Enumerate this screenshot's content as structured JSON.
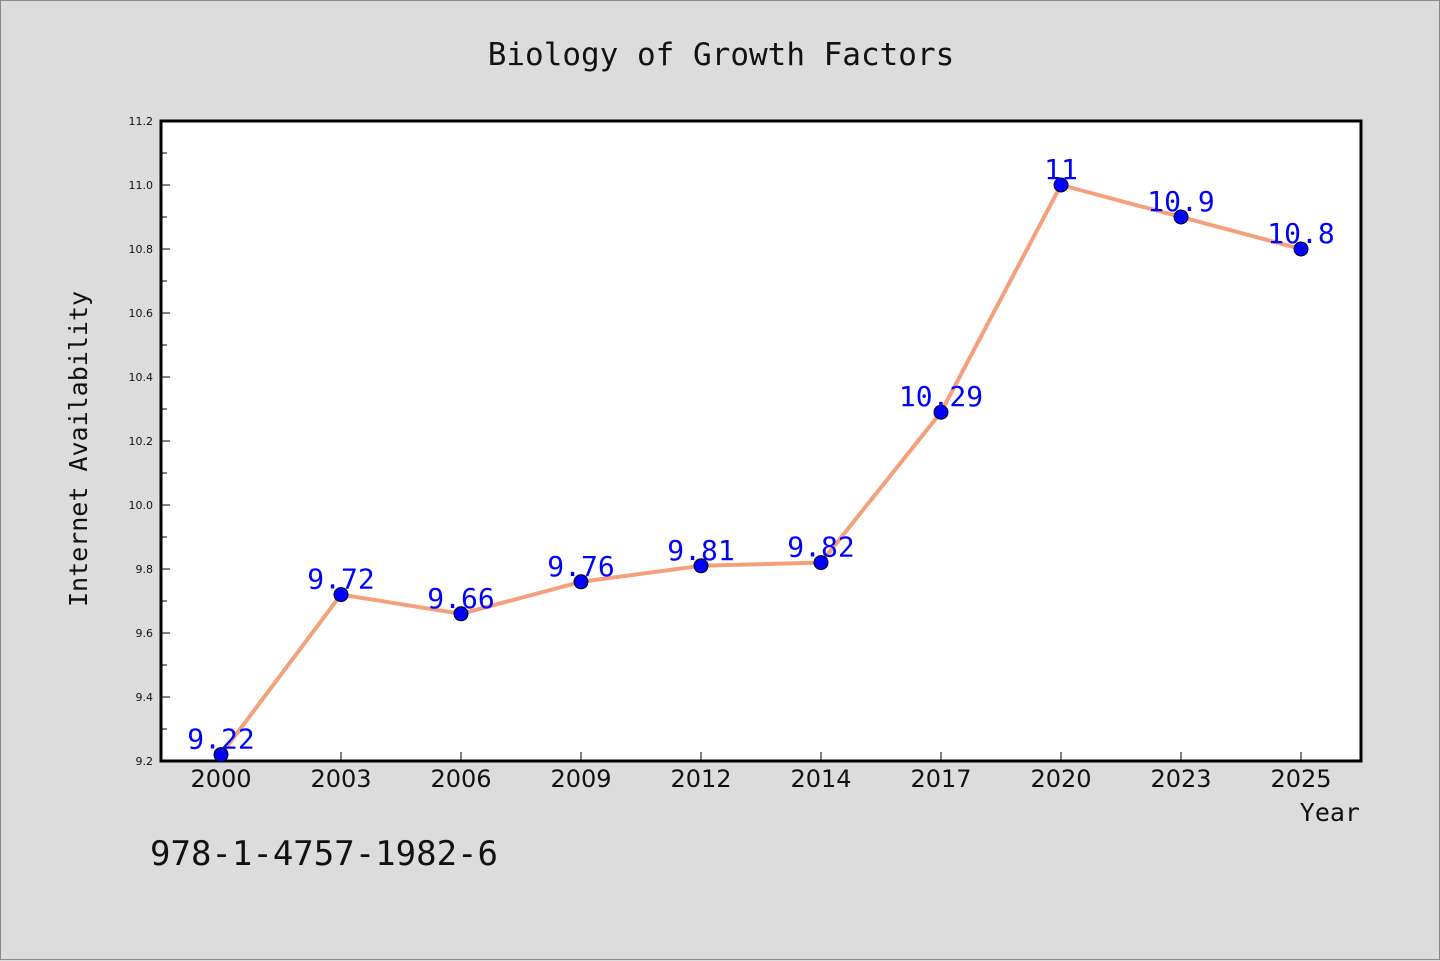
{
  "chart_data": {
    "type": "line",
    "title": "Biology of Growth Factors",
    "xlabel": "Year",
    "ylabel": "Internet Availability",
    "categories": [
      "2000",
      "2003",
      "2006",
      "2009",
      "2012",
      "2014",
      "2017",
      "2020",
      "2023",
      "2025"
    ],
    "series": [
      {
        "values": [
          9.22,
          9.72,
          9.66,
          9.76,
          9.81,
          9.82,
          10.29,
          11,
          10.9,
          10.8
        ]
      }
    ],
    "data_labels": [
      "9.22",
      "9.72",
      "9.66",
      "9.76",
      "9.81",
      "9.82",
      "10.29",
      "11",
      "10.9",
      "10.8"
    ],
    "ylim": [
      9.2,
      11.2
    ],
    "yticks": [
      "9.2",
      "9.4",
      "9.6",
      "9.8",
      "10.0",
      "10.2",
      "10.4",
      "10.6",
      "10.8",
      "11.0",
      "11.2"
    ],
    "grid": false,
    "legend": "none",
    "colors": {
      "line": "#f4a07c",
      "marker": "#0000ff",
      "label": "#0000ff",
      "background": "#dcdcdc",
      "plot_area": "#ffffff"
    }
  },
  "footer": {
    "isbn": "978-1-4757-1982-6"
  }
}
